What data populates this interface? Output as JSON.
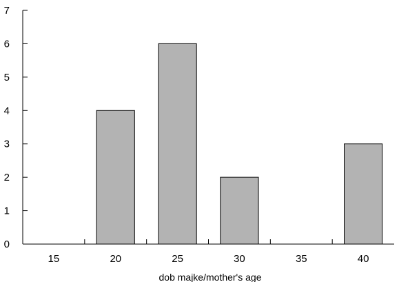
{
  "chart_data": {
    "type": "bar",
    "categories": [
      "15",
      "20",
      "25",
      "30",
      "35",
      "40"
    ],
    "values": [
      0,
      4,
      6,
      2,
      0,
      3
    ],
    "title": "",
    "xlabel": "dob majke/mother's age",
    "ylabel": "",
    "ylim": [
      0,
      7
    ],
    "yticks": [
      0,
      1,
      2,
      3,
      4,
      5,
      6,
      7
    ],
    "bar_color": "#b3b3b3",
    "grid": false
  }
}
